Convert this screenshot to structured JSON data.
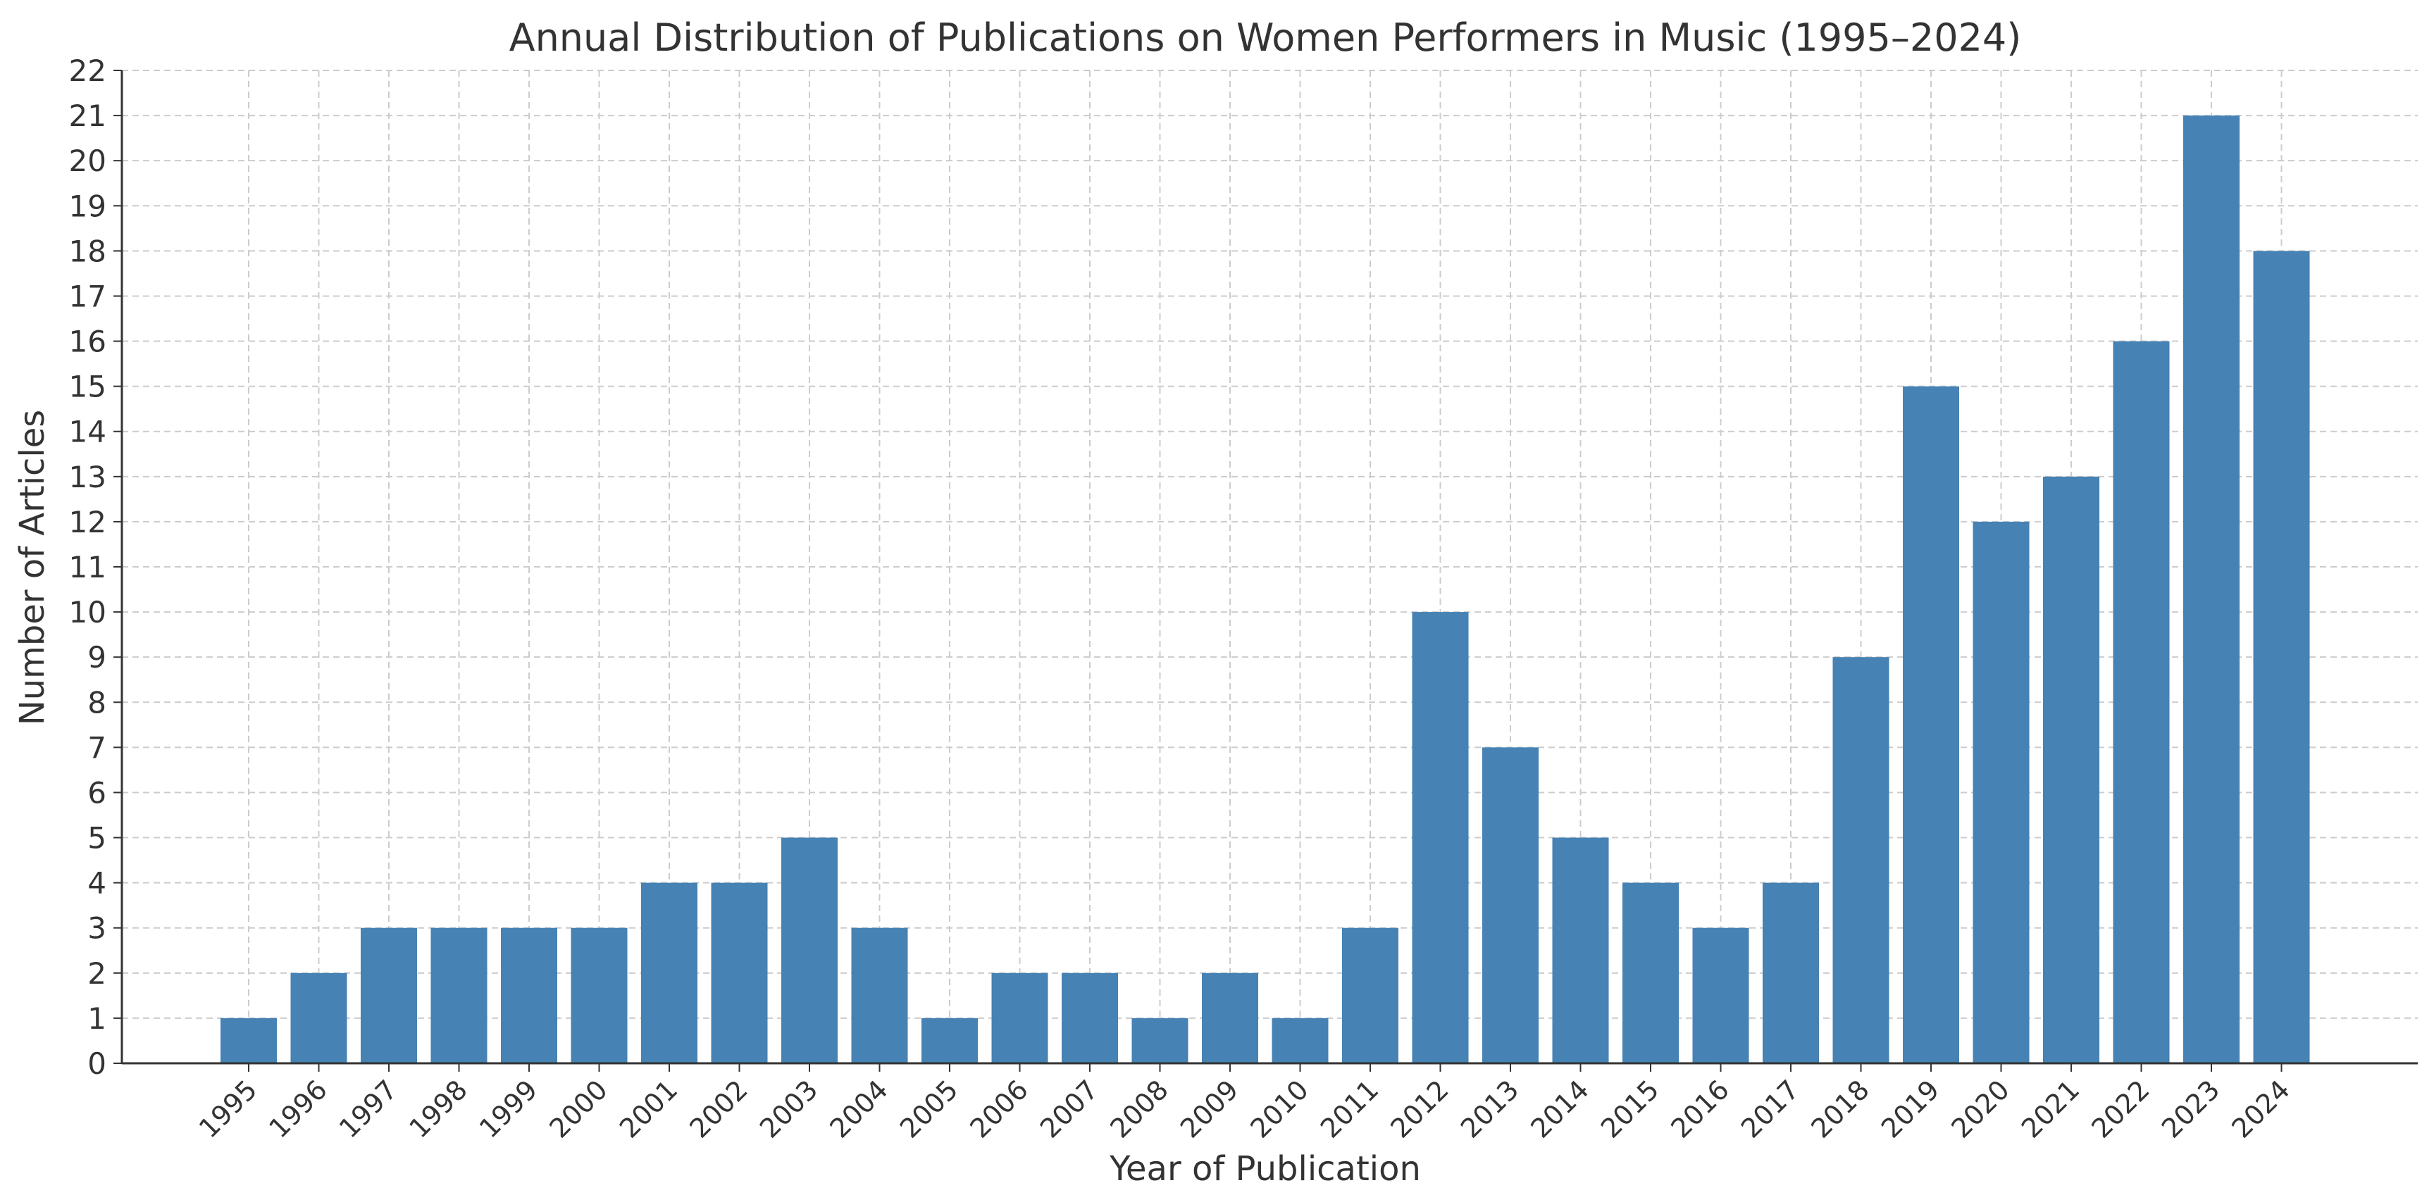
{
  "chart_data": {
    "type": "bar",
    "title": "Annual Distribution of Publications on Women Performers in Music (1995–2024)",
    "xlabel": "Year of Publication",
    "ylabel": "Number of Articles",
    "categories": [
      "1995",
      "1996",
      "1997",
      "1998",
      "1999",
      "2000",
      "2001",
      "2002",
      "2003",
      "2004",
      "2005",
      "2006",
      "2007",
      "2008",
      "2009",
      "2010",
      "2011",
      "2012",
      "2013",
      "2014",
      "2015",
      "2016",
      "2017",
      "2018",
      "2019",
      "2020",
      "2021",
      "2022",
      "2023",
      "2024"
    ],
    "values": [
      1,
      2,
      3,
      3,
      3,
      3,
      4,
      4,
      5,
      3,
      1,
      2,
      2,
      1,
      2,
      1,
      3,
      10,
      7,
      5,
      4,
      3,
      4,
      9,
      15,
      12,
      13,
      16,
      21,
      18
    ],
    "ylim": [
      0,
      22
    ],
    "yticks": [
      0,
      1,
      2,
      3,
      4,
      5,
      6,
      7,
      8,
      9,
      10,
      11,
      12,
      13,
      14,
      15,
      16,
      17,
      18,
      19,
      20,
      21,
      22
    ],
    "grid": true,
    "bar_color": "#4682B4",
    "grid_color": "#cccccc",
    "axis_color": "#333333"
  }
}
